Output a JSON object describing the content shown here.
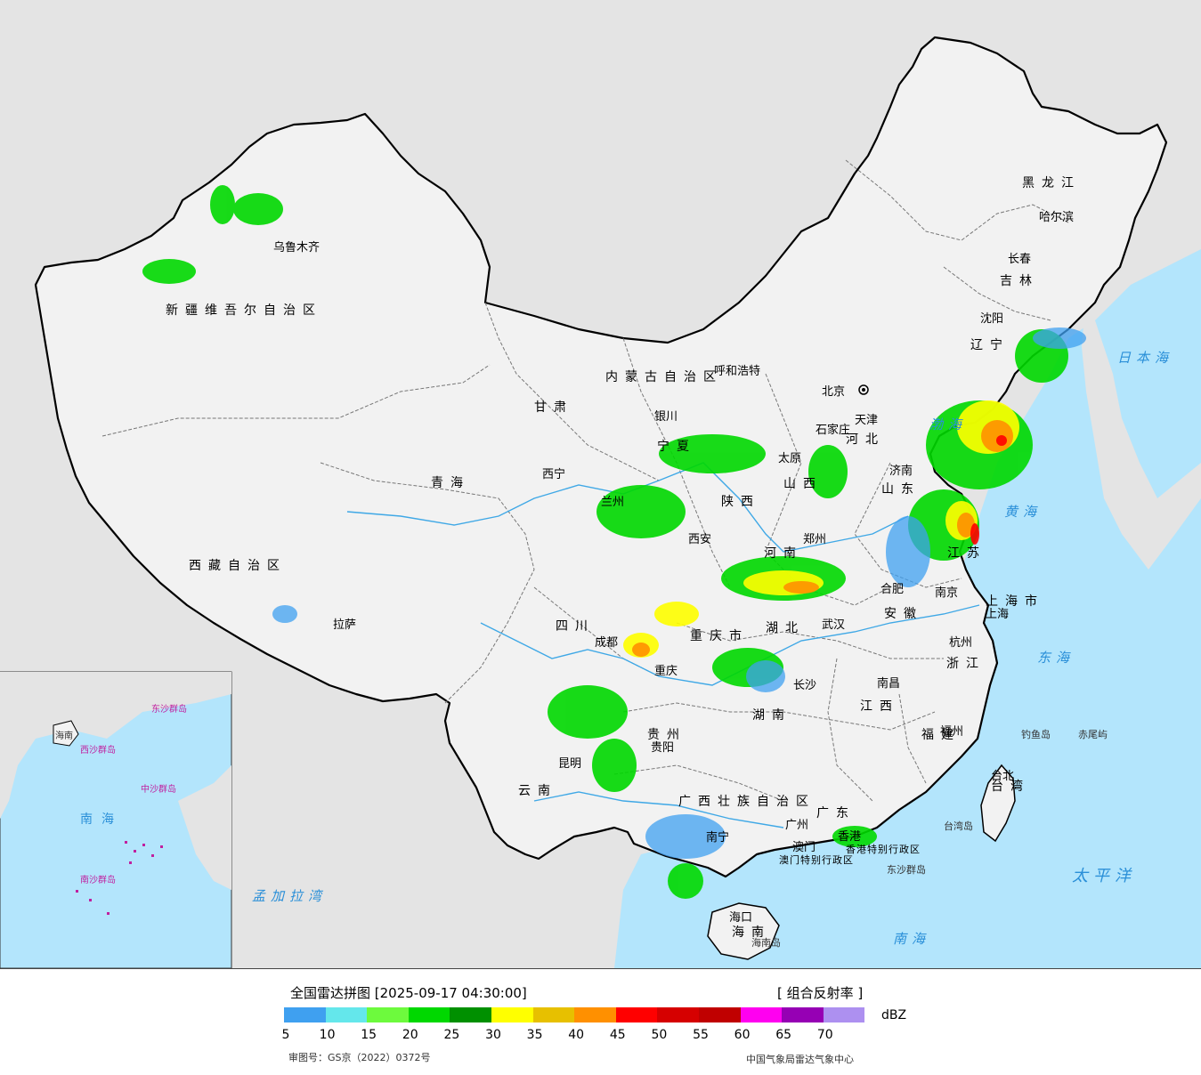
{
  "legend": {
    "title": "全国雷达拼图 [2025-09-17 04:30:00]",
    "product": "[ 组合反射率 ]",
    "unit": "dBZ",
    "ticks": [
      "5",
      "10",
      "15",
      "20",
      "25",
      "30",
      "35",
      "40",
      "45",
      "50",
      "55",
      "60",
      "65",
      "70"
    ],
    "colors": [
      "#3fa0f0",
      "#64e7eb",
      "#6dfa3d",
      "#00d800",
      "#009000",
      "#ffff00",
      "#e7c000",
      "#ff9000",
      "#ff0000",
      "#d60000",
      "#c00000",
      "#ff00f0",
      "#9600b4",
      "#ad90f0"
    ],
    "approval": "审图号：GS京（2022）0372号",
    "agency": "中国气象局雷达气象中心"
  },
  "colors": {
    "sea": "#b3e5fc",
    "land_china": "#f2f2f2",
    "land_foreign": "#e4e4e4",
    "border": "#000000",
    "province_border": "#777777"
  },
  "map_labels": {
    "cities": [
      {
        "name": "乌鲁木齐"
      },
      {
        "name": "拉萨"
      },
      {
        "name": "西宁"
      },
      {
        "name": "兰州"
      },
      {
        "name": "银川"
      },
      {
        "name": "呼和浩特"
      },
      {
        "name": "北京"
      },
      {
        "name": "天津"
      },
      {
        "name": "石家庄"
      },
      {
        "name": "太原"
      },
      {
        "name": "济南"
      },
      {
        "name": "西安"
      },
      {
        "name": "郑州"
      },
      {
        "name": "合肥"
      },
      {
        "name": "南京"
      },
      {
        "name": "上海"
      },
      {
        "name": "杭州"
      },
      {
        "name": "武汉"
      },
      {
        "name": "成都"
      },
      {
        "name": "重庆"
      },
      {
        "name": "长沙"
      },
      {
        "name": "南昌"
      },
      {
        "name": "福州"
      },
      {
        "name": "台北"
      },
      {
        "name": "贵阳"
      },
      {
        "name": "昆明"
      },
      {
        "name": "南宁"
      },
      {
        "name": "广州"
      },
      {
        "name": "澳门"
      },
      {
        "name": "香港"
      },
      {
        "name": "海口"
      },
      {
        "name": "沈阳"
      },
      {
        "name": "长春"
      },
      {
        "name": "哈尔滨"
      }
    ],
    "regions": [
      {
        "name": "新疆维吾尔自治区"
      },
      {
        "name": "西藏自治区"
      },
      {
        "name": "青海"
      },
      {
        "name": "甘肃"
      },
      {
        "name": "四川"
      },
      {
        "name": "云南"
      },
      {
        "name": "贵州"
      },
      {
        "name": "广西壮族自治区"
      },
      {
        "name": "湖南"
      },
      {
        "name": "湖北"
      },
      {
        "name": "河南"
      },
      {
        "name": "陕西"
      },
      {
        "name": "山西"
      },
      {
        "name": "河北"
      },
      {
        "name": "山东"
      },
      {
        "name": "江苏"
      },
      {
        "name": "安徽"
      },
      {
        "name": "浙江"
      },
      {
        "name": "江西"
      },
      {
        "name": "福建"
      },
      {
        "name": "广东"
      },
      {
        "name": "海南"
      },
      {
        "name": "重庆市"
      },
      {
        "name": "上海市"
      },
      {
        "name": "宁夏"
      },
      {
        "name": "内蒙古自治区"
      },
      {
        "name": "辽宁"
      },
      {
        "name": "吉林"
      },
      {
        "name": "黑龙江"
      },
      {
        "name": "台湾"
      },
      {
        "name": "香港特别行政区"
      },
      {
        "name": "澳门特别行政区"
      }
    ],
    "seas": [
      {
        "name": "日本海"
      },
      {
        "name": "渤海"
      },
      {
        "name": "黄海"
      },
      {
        "name": "东海"
      },
      {
        "name": "太平洋"
      },
      {
        "name": "南海"
      },
      {
        "name": "孟加拉湾"
      }
    ],
    "islands": [
      {
        "name": "钓鱼岛"
      },
      {
        "name": "赤尾屿"
      },
      {
        "name": "台湾岛"
      },
      {
        "name": "东沙群岛"
      },
      {
        "name": "海南岛"
      }
    ],
    "inset": [
      {
        "name": "南海"
      },
      {
        "name": "西沙群岛"
      },
      {
        "name": "中沙群岛"
      },
      {
        "name": "南沙群岛"
      },
      {
        "name": "东沙群岛"
      },
      {
        "name": "海南"
      }
    ]
  }
}
